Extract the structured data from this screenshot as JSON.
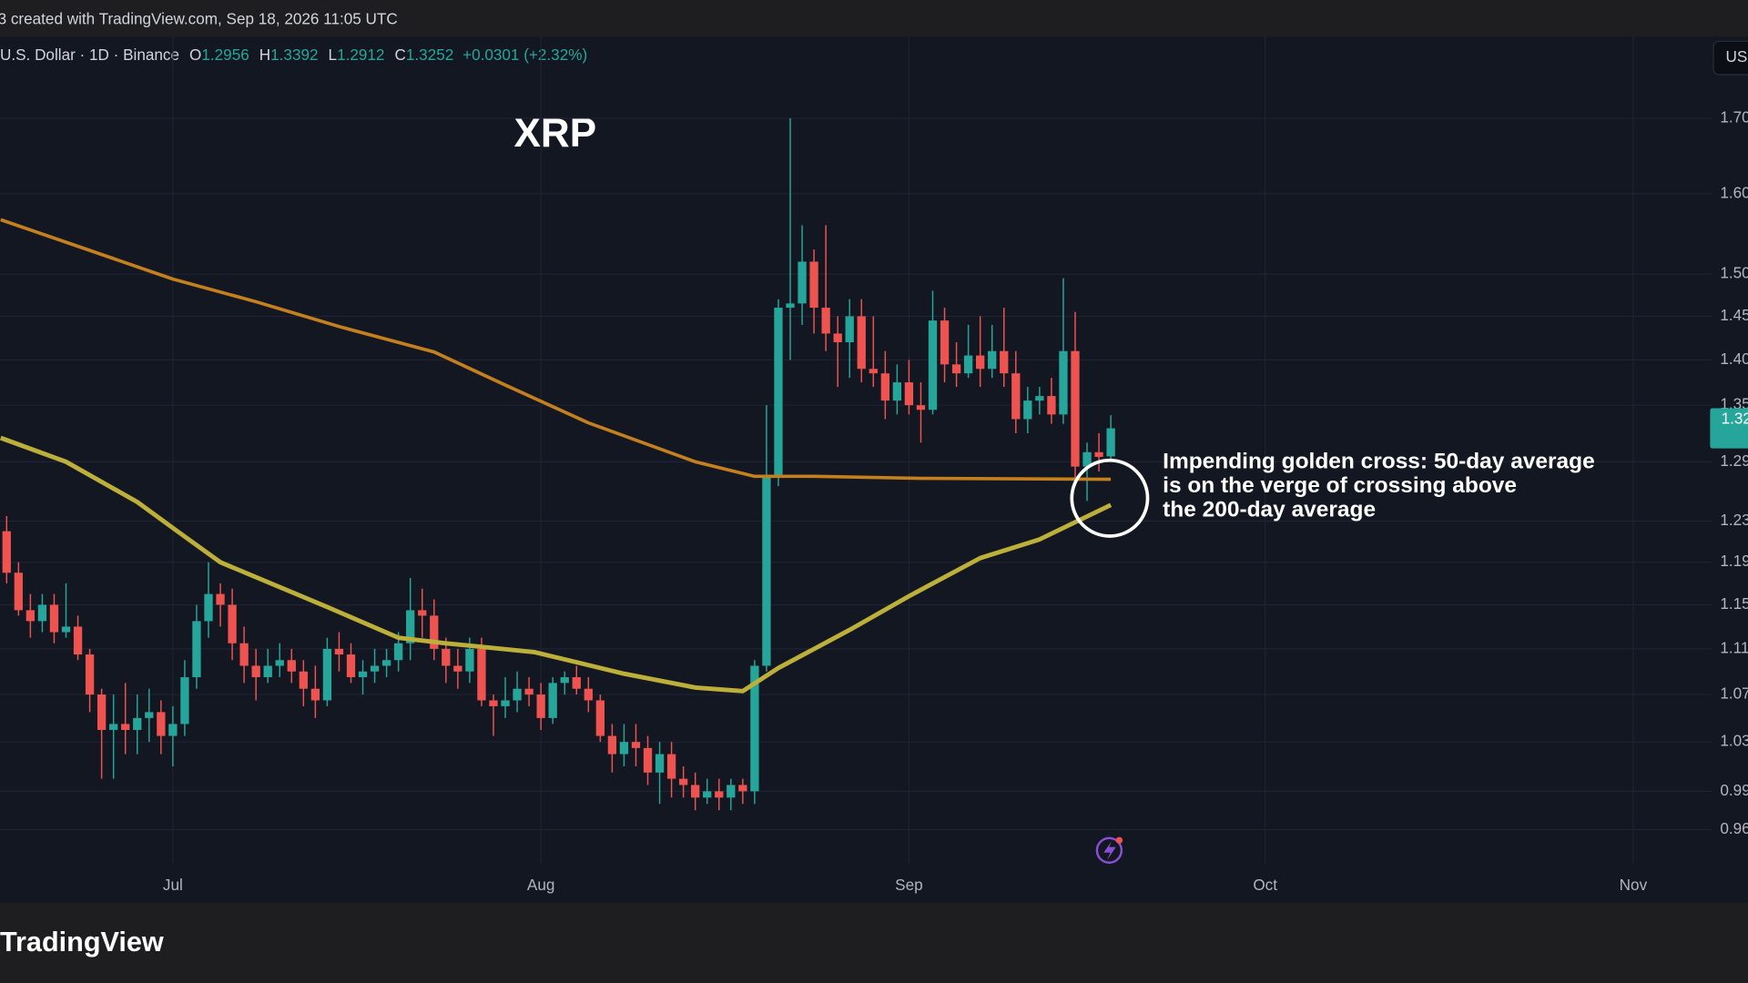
{
  "chart_data": {
    "type": "candlestick",
    "header": "3 created with TradingView.com, Sep 18, 2026 11:05 UTC",
    "symbol": "U.S. Dollar · 1D · Binance",
    "ohlc_labels": [
      "O",
      "H",
      "L",
      "C"
    ],
    "change_label": "+0.0301 (+2.32%)",
    "currency_button": "USD",
    "title": "XRP",
    "annotation": [
      "Impending golden cross: 50-day average",
      "is on the verge of crossing above",
      "the 200-day average"
    ],
    "branding": "TradingView",
    "log_scale": true,
    "grid": true,
    "up_color": "#26a69a",
    "down_color": "#ef5350",
    "xlim": [
      -0.56,
      143.57
    ],
    "xticks": [
      {
        "value": 14,
        "label": "Jul"
      },
      {
        "value": 45,
        "label": "Aug"
      },
      {
        "value": 76,
        "label": "Sep"
      },
      {
        "value": 106,
        "label": "Oct"
      },
      {
        "value": 137,
        "label": "Nov"
      }
    ],
    "ylim": [
      0.934,
      1.815
    ],
    "yticks": [
      0.96,
      0.99,
      1.03,
      1.07,
      1.11,
      1.15,
      1.19,
      1.23,
      1.29,
      1.35,
      {
        "value": 1.4,
        "label": "1.40"
      },
      1.45,
      {
        "value": 1.5,
        "label": "1.50"
      },
      {
        "value": 1.6,
        "label": "1.60"
      },
      {
        "value": 1.7,
        "label": "1.70"
      }
    ],
    "x": [
      0,
      1,
      2,
      3,
      4,
      5,
      6,
      7,
      8,
      9,
      10,
      11,
      12,
      13,
      14,
      15,
      16,
      17,
      18,
      19,
      20,
      21,
      22,
      23,
      24,
      25,
      26,
      27,
      28,
      29,
      30,
      31,
      32,
      33,
      34,
      35,
      36,
      37,
      38,
      39,
      40,
      41,
      42,
      43,
      44,
      45,
      46,
      47,
      48,
      49,
      50,
      51,
      52,
      53,
      54,
      55,
      56,
      57,
      58,
      59,
      60,
      61,
      62,
      63,
      64,
      65,
      66,
      67,
      68,
      69,
      70,
      71,
      72,
      73,
      74,
      75,
      76,
      77,
      78,
      79,
      80,
      81,
      82,
      83,
      84,
      85,
      86,
      87,
      88,
      89,
      90,
      91,
      92,
      93
    ],
    "open": [
      1.22,
      1.18,
      1.145,
      1.135,
      1.15,
      1.125,
      1.13,
      1.105,
      1.07,
      1.04,
      1.045,
      1.04,
      1.05,
      1.055,
      1.035,
      1.045,
      1.085,
      1.135,
      1.16,
      1.15,
      1.115,
      1.095,
      1.085,
      1.095,
      1.1,
      1.09,
      1.075,
      1.065,
      1.11,
      1.105,
      1.085,
      1.09,
      1.095,
      1.1,
      1.115,
      1.145,
      1.14,
      1.11,
      1.095,
      1.09,
      1.11,
      1.065,
      1.06,
      1.065,
      1.075,
      1.07,
      1.05,
      1.08,
      1.085,
      1.075,
      1.065,
      1.035,
      1.02,
      1.03,
      1.025,
      1.005,
      1.02,
      1.0,
      0.995,
      0.985,
      0.99,
      0.985,
      0.995,
      0.99,
      1.095,
      1.275,
      1.46,
      1.465,
      1.515,
      1.46,
      1.43,
      1.42,
      1.45,
      1.39,
      1.385,
      1.355,
      1.375,
      1.35,
      1.345,
      1.445,
      1.395,
      1.385,
      1.405,
      1.39,
      1.41,
      1.385,
      1.335,
      1.355,
      1.36,
      1.34,
      1.41,
      1.285,
      1.3,
      1.2956
    ],
    "high": [
      1.235,
      1.19,
      1.16,
      1.16,
      1.16,
      1.17,
      1.14,
      1.11,
      1.075,
      1.07,
      1.08,
      1.07,
      1.075,
      1.065,
      1.06,
      1.1,
      1.15,
      1.19,
      1.17,
      1.165,
      1.13,
      1.11,
      1.11,
      1.115,
      1.11,
      1.1,
      1.095,
      1.12,
      1.125,
      1.115,
      1.1,
      1.11,
      1.11,
      1.125,
      1.175,
      1.165,
      1.155,
      1.12,
      1.11,
      1.12,
      1.12,
      1.07,
      1.085,
      1.09,
      1.085,
      1.08,
      1.085,
      1.09,
      1.095,
      1.085,
      1.07,
      1.045,
      1.045,
      1.045,
      1.035,
      1.03,
      1.03,
      1.01,
      1.005,
      1.0,
      1.0,
      1.0,
      1.0,
      1.1,
      1.35,
      1.47,
      1.7,
      1.56,
      1.53,
      1.56,
      1.45,
      1.47,
      1.47,
      1.45,
      1.41,
      1.395,
      1.4,
      1.375,
      1.48,
      1.46,
      1.42,
      1.44,
      1.45,
      1.44,
      1.46,
      1.41,
      1.37,
      1.37,
      1.38,
      1.495,
      1.455,
      1.31,
      1.32,
      1.3392
    ],
    "low": [
      1.17,
      1.14,
      1.12,
      1.125,
      1.115,
      1.12,
      1.1,
      1.055,
      1.0,
      1.0,
      1.02,
      1.02,
      1.03,
      1.02,
      1.01,
      1.035,
      1.075,
      1.12,
      1.13,
      1.1,
      1.08,
      1.065,
      1.08,
      1.085,
      1.08,
      1.06,
      1.05,
      1.06,
      1.09,
      1.08,
      1.07,
      1.08,
      1.085,
      1.09,
      1.1,
      1.12,
      1.1,
      1.08,
      1.075,
      1.08,
      1.06,
      1.035,
      1.05,
      1.055,
      1.06,
      1.04,
      1.045,
      1.07,
      1.07,
      1.055,
      1.03,
      1.005,
      1.01,
      1.01,
      0.995,
      0.98,
      0.985,
      0.985,
      0.975,
      0.98,
      0.975,
      0.975,
      0.98,
      0.98,
      1.09,
      1.265,
      1.4,
      1.44,
      1.43,
      1.41,
      1.37,
      1.38,
      1.375,
      1.37,
      1.335,
      1.34,
      1.34,
      1.31,
      1.34,
      1.375,
      1.37,
      1.38,
      1.37,
      1.38,
      1.37,
      1.32,
      1.32,
      1.34,
      1.33,
      1.33,
      1.265,
      1.25,
      1.28,
      1.2912
    ],
    "close": [
      1.18,
      1.145,
      1.135,
      1.15,
      1.125,
      1.13,
      1.105,
      1.07,
      1.04,
      1.045,
      1.04,
      1.05,
      1.055,
      1.035,
      1.045,
      1.085,
      1.135,
      1.16,
      1.15,
      1.115,
      1.095,
      1.085,
      1.095,
      1.1,
      1.09,
      1.075,
      1.065,
      1.11,
      1.105,
      1.085,
      1.09,
      1.095,
      1.1,
      1.115,
      1.145,
      1.14,
      1.11,
      1.095,
      1.09,
      1.11,
      1.065,
      1.06,
      1.065,
      1.075,
      1.07,
      1.05,
      1.08,
      1.085,
      1.075,
      1.065,
      1.035,
      1.02,
      1.03,
      1.025,
      1.005,
      1.02,
      1.0,
      0.995,
      0.985,
      0.99,
      0.985,
      0.995,
      0.99,
      1.095,
      1.275,
      1.46,
      1.465,
      1.515,
      1.46,
      1.43,
      1.42,
      1.45,
      1.39,
      1.385,
      1.355,
      1.375,
      1.35,
      1.345,
      1.445,
      1.395,
      1.385,
      1.405,
      1.39,
      1.41,
      1.385,
      1.335,
      1.355,
      1.36,
      1.34,
      1.41,
      1.285,
      1.3,
      1.2951,
      1.3252
    ],
    "moving_averages": [
      {
        "color": "#c47f1f",
        "x": [
          -0.5,
          14,
          21,
          28,
          36,
          42,
          49,
          58,
          63,
          68,
          77,
          93
        ],
        "values": [
          1.567,
          1.494,
          1.467,
          1.438,
          1.409,
          1.372,
          1.331,
          1.29,
          1.275,
          1.275,
          1.273,
          1.272
        ]
      },
      {
        "color": "#bdb03a",
        "x": [
          -0.5,
          5,
          11,
          14.5,
          18,
          27,
          33,
          37,
          44.5,
          52,
          58,
          62,
          65,
          71,
          76,
          82,
          87,
          93
        ],
        "values": [
          1.315,
          1.29,
          1.249,
          1.219,
          1.19,
          1.148,
          1.12,
          1.115,
          1.107,
          1.088,
          1.076,
          1.073,
          1.093,
          1.127,
          1.158,
          1.194,
          1.212,
          1.246
        ]
      }
    ]
  }
}
